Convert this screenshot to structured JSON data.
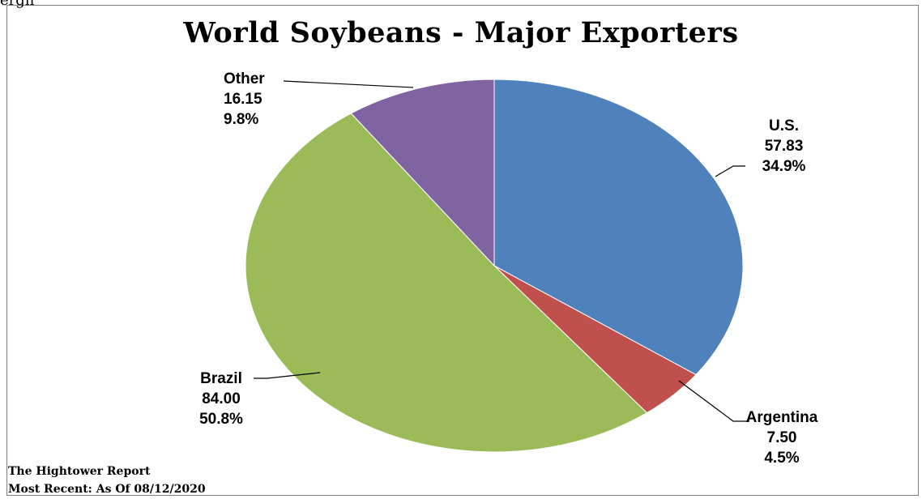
{
  "page": {
    "clipped_heading": "ergh"
  },
  "chart_data": {
    "type": "pie",
    "title": "World Soybeans - Major Exporters",
    "slices": [
      {
        "name": "U.S.",
        "value": 57.83,
        "percent": "34.9%",
        "color": "#4F81BD"
      },
      {
        "name": "Argentina",
        "value": 7.5,
        "percent": "4.5%",
        "color": "#C0504D"
      },
      {
        "name": "Brazil",
        "value": 84.0,
        "percent": "50.8%",
        "color": "#9BBB59"
      },
      {
        "name": "Other",
        "value": 16.15,
        "percent": "9.8%",
        "color": "#8064A2"
      }
    ],
    "value_labels": [
      "57.83",
      "7.50",
      "84.00",
      "16.15"
    ],
    "start_angle": "12 o'clock",
    "direction": "clockwise",
    "legend": "none",
    "border": "#7F7F7F"
  },
  "footer": {
    "source": "The Hightower Report",
    "date_note": "Most Recent: As Of 08/12/2020"
  }
}
